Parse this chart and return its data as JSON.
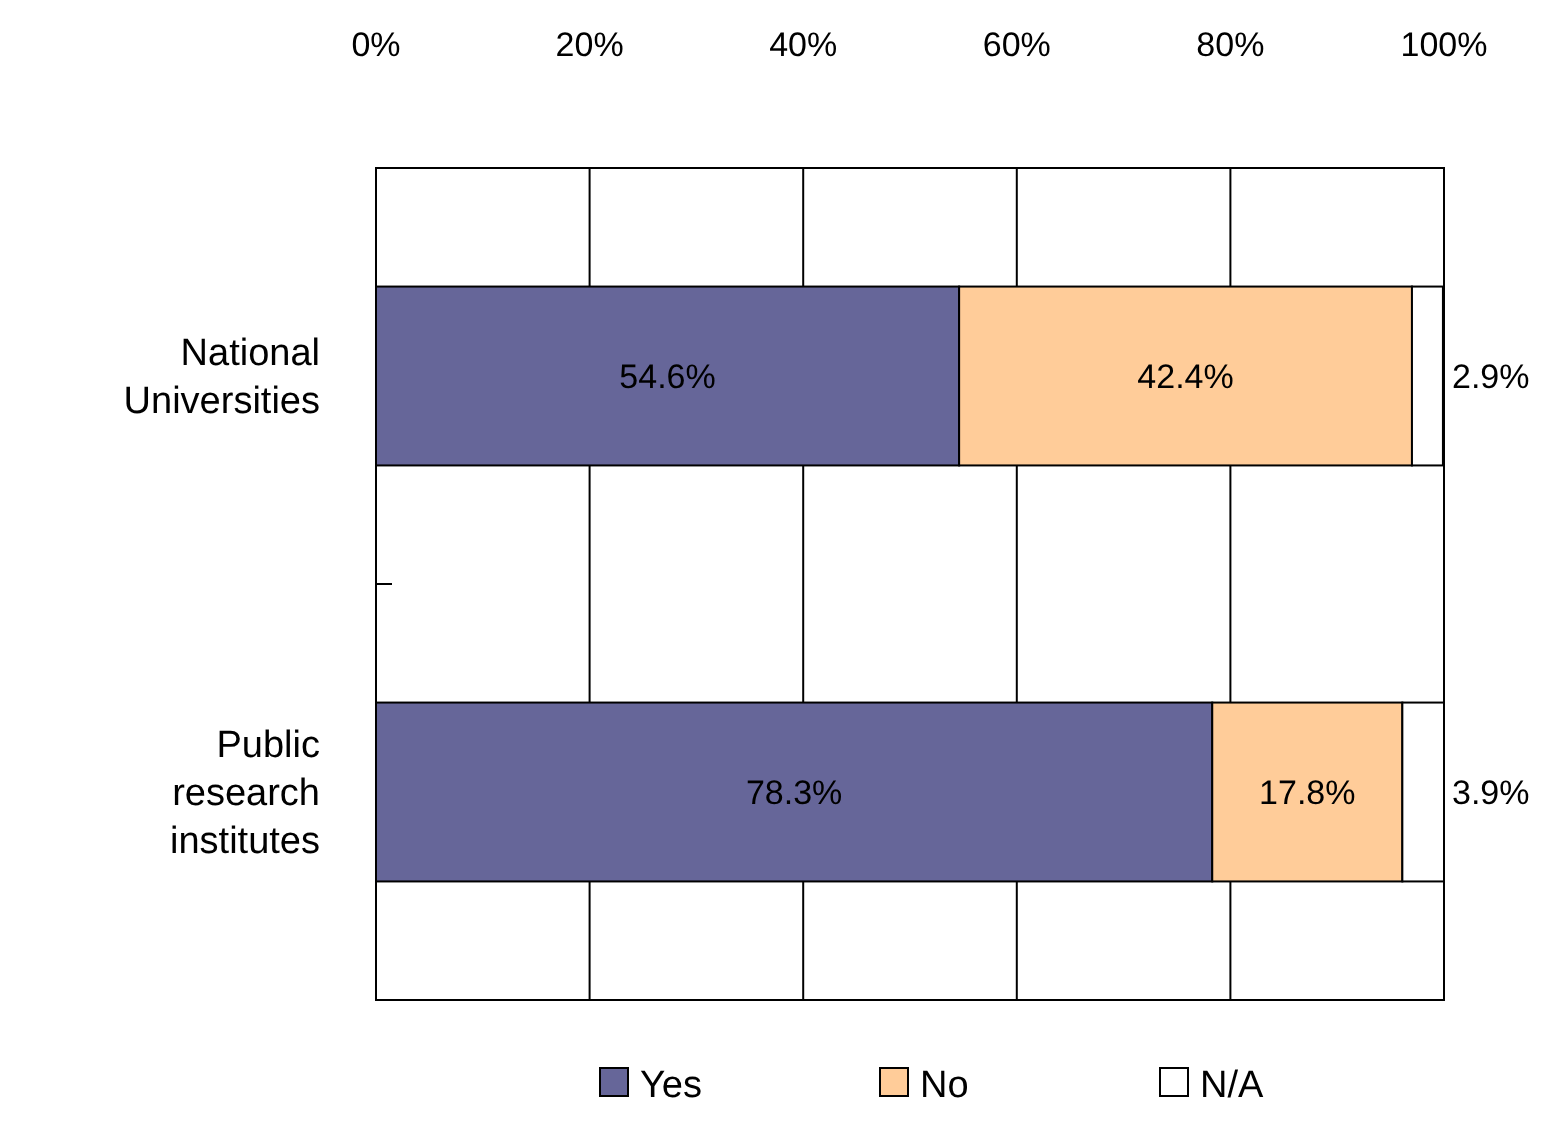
{
  "chart_data": {
    "type": "bar",
    "orientation": "horizontal",
    "stacked": true,
    "categories": [
      "National Universities",
      "Public research institutes"
    ],
    "series": [
      {
        "name": "Yes",
        "color": "#666699",
        "values": [
          54.6,
          78.3
        ],
        "value_labels": [
          "54.6%",
          "78.3%"
        ]
      },
      {
        "name": "No",
        "color": "#ffcc99",
        "values": [
          42.4,
          17.8
        ],
        "value_labels": [
          "42.4%",
          "17.8%"
        ]
      },
      {
        "name": "N/A",
        "color": "#ffffff",
        "values": [
          2.9,
          3.9
        ],
        "value_labels": [
          "2.9%",
          "3.9%"
        ]
      }
    ],
    "xlim": [
      0,
      100
    ],
    "xticks": [
      {
        "value": 0,
        "label": "0%"
      },
      {
        "value": 20,
        "label": "20%"
      },
      {
        "value": 40,
        "label": "40%"
      },
      {
        "value": 60,
        "label": "60%"
      },
      {
        "value": 80,
        "label": "80%"
      },
      {
        "value": 100,
        "label": "100%"
      }
    ],
    "grid": "x",
    "legend": "bottom"
  }
}
